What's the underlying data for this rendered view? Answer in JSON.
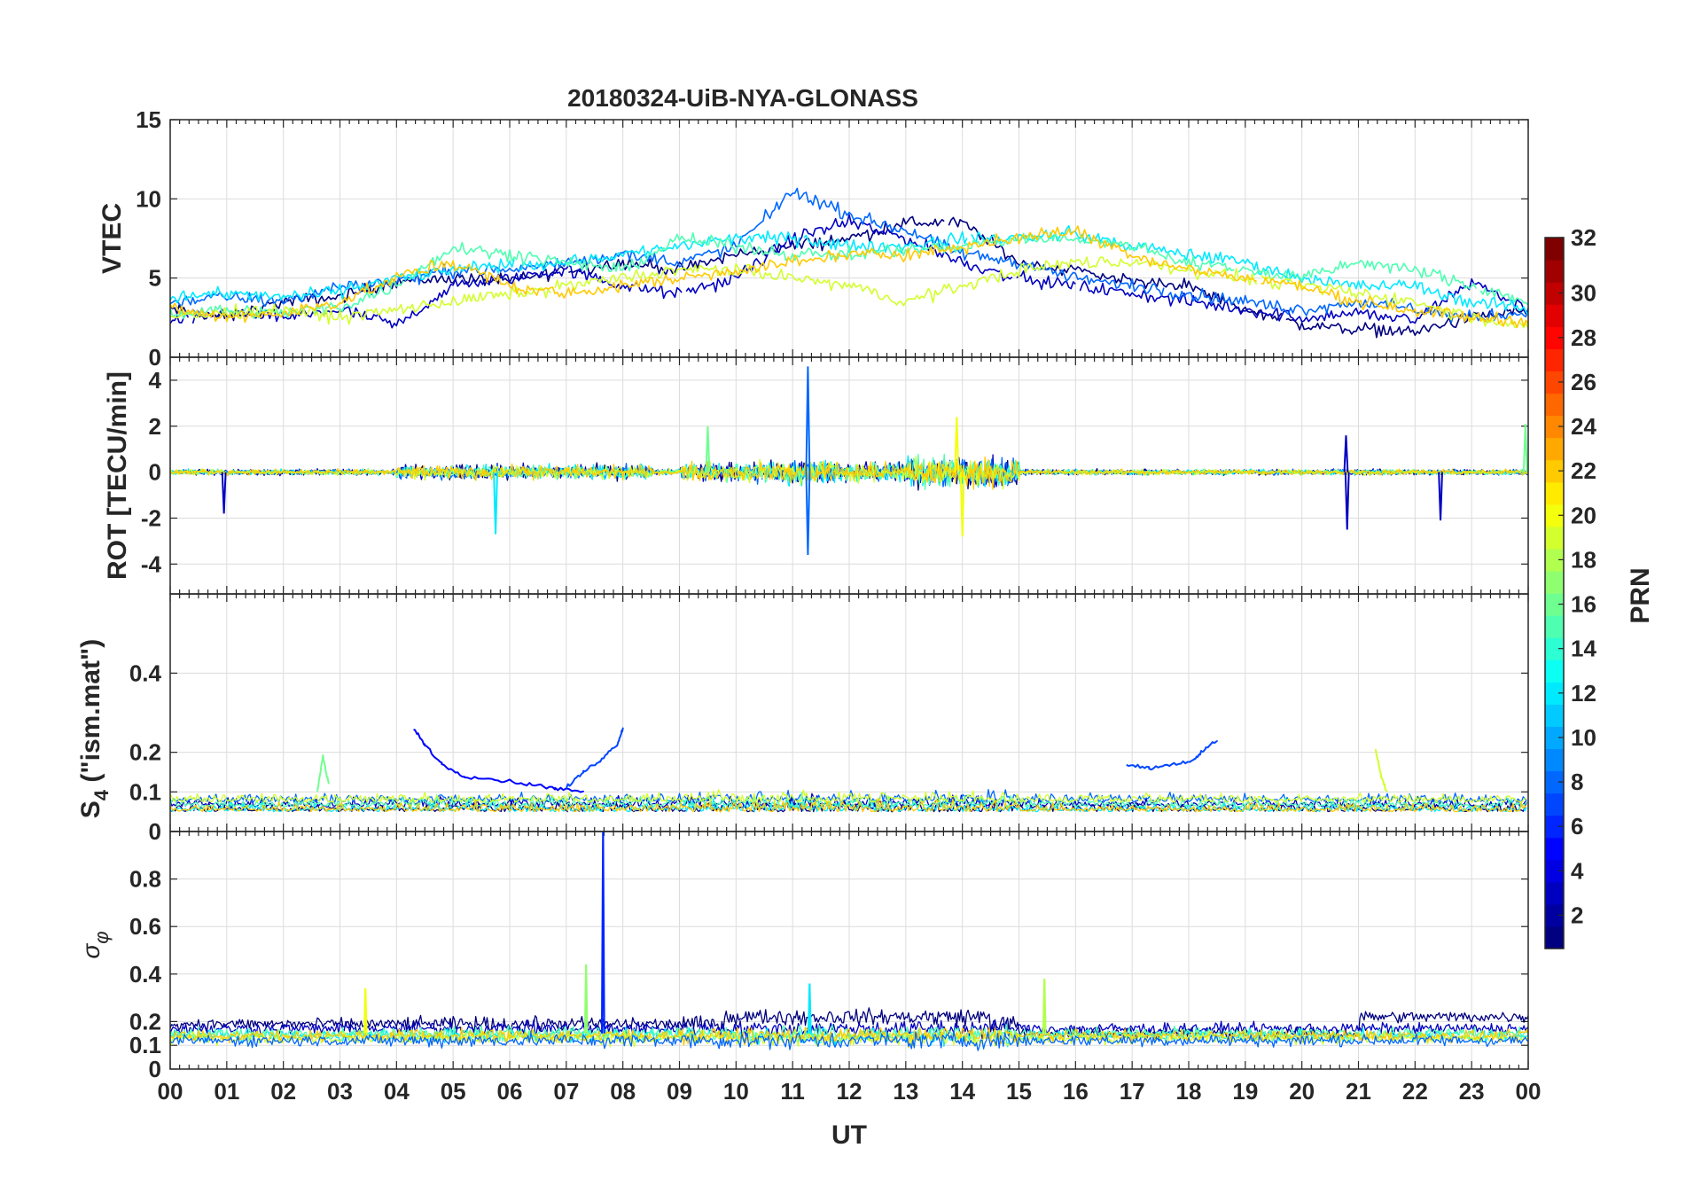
{
  "chart_data": {
    "type": "line",
    "title": "20180324-UiB-NYA-GLONASS",
    "xlabel": "UT",
    "x_tick_labels": [
      "00",
      "01",
      "02",
      "03",
      "04",
      "05",
      "06",
      "07",
      "08",
      "09",
      "10",
      "11",
      "12",
      "13",
      "14",
      "15",
      "16",
      "17",
      "18",
      "19",
      "20",
      "21",
      "22",
      "23",
      "00"
    ],
    "xlim": [
      0,
      24
    ],
    "grid": true,
    "panels": [
      {
        "id": "vtec",
        "ylabel": "VTEC",
        "ylim": [
          0,
          15
        ],
        "yticks": [
          0,
          5,
          10,
          15
        ],
        "ytick_labels": [
          "0",
          "5",
          "10",
          "15"
        ],
        "series": [
          {
            "prn": 1,
            "x": [
              0,
              1,
              2,
              3,
              4,
              5,
              6,
              7,
              8,
              9,
              10,
              11,
              12,
              13,
              14,
              15,
              16,
              17,
              18,
              19,
              20,
              21,
              22,
              23,
              24
            ],
            "y": [
              3.0,
              2.5,
              3.5,
              3.8,
              4.8,
              5.0,
              4.8,
              5.5,
              6.0,
              5.5,
              6.5,
              7.0,
              7.5,
              8.5,
              8.5,
              6.0,
              5.5,
              4.8,
              4.5,
              3.0,
              2.0,
              1.8,
              1.6,
              2.5,
              3.0
            ]
          },
          {
            "prn": 3,
            "x": [
              0,
              1,
              2,
              3,
              4,
              5,
              6,
              7,
              8,
              9,
              10,
              11,
              12,
              13,
              14,
              15,
              16,
              17,
              18,
              19,
              20,
              21,
              22,
              23,
              24
            ],
            "y": [
              2.2,
              2.8,
              2.5,
              3.0,
              2.0,
              4.5,
              5.0,
              5.5,
              4.5,
              4.0,
              5.0,
              7.5,
              8.5,
              7.5,
              6.0,
              5.0,
              4.5,
              4.0,
              3.5,
              3.0,
              2.5,
              2.8,
              2.3,
              4.8,
              3.0
            ]
          },
          {
            "prn": 8,
            "x": [
              0,
              1,
              2,
              3,
              4,
              5,
              6,
              7,
              8,
              9,
              10,
              11,
              12,
              13,
              14,
              15,
              16,
              17,
              18,
              19,
              20,
              21,
              22,
              23,
              24
            ],
            "y": [
              3.5,
              3.8,
              3.5,
              4.5,
              4.8,
              5.5,
              5.5,
              6.0,
              6.5,
              6.0,
              7.0,
              10.5,
              9.0,
              8.0,
              6.5,
              6.0,
              5.0,
              4.5,
              4.0,
              3.5,
              3.0,
              3.5,
              3.0,
              2.5,
              2.8
            ]
          },
          {
            "prn": 12,
            "x": [
              0,
              1,
              2,
              3,
              4,
              5,
              6,
              7,
              8,
              9,
              10,
              11,
              12,
              13,
              14,
              15,
              16,
              17,
              18,
              19,
              20,
              21,
              22,
              23,
              24
            ],
            "y": [
              3.8,
              4.0,
              3.8,
              4.2,
              5.0,
              5.5,
              5.8,
              6.0,
              6.5,
              7.0,
              7.5,
              7.5,
              7.0,
              7.0,
              7.5,
              7.5,
              7.8,
              7.0,
              6.5,
              6.0,
              5.0,
              4.5,
              4.5,
              3.5,
              3.0
            ]
          },
          {
            "prn": 15,
            "x": [
              0,
              1,
              2,
              3,
              4,
              5,
              6,
              7,
              8,
              9,
              10,
              11,
              12,
              13,
              14,
              15,
              16,
              17,
              18,
              19,
              20,
              21,
              22,
              23,
              24
            ],
            "y": [
              2.8,
              3.0,
              2.8,
              3.2,
              4.5,
              7.0,
              6.5,
              6.0,
              5.5,
              7.5,
              7.0,
              6.5,
              6.5,
              6.8,
              7.0,
              7.5,
              7.5,
              7.0,
              6.0,
              5.5,
              5.0,
              6.0,
              5.5,
              4.5,
              3.5
            ]
          },
          {
            "prn": 19,
            "x": [
              0,
              1,
              2,
              3,
              4,
              5,
              6,
              7,
              8,
              9,
              10,
              11,
              12,
              13,
              14,
              15,
              16,
              17,
              18,
              19,
              20,
              21,
              22,
              23,
              24
            ],
            "y": [
              2.5,
              2.8,
              3.0,
              2.5,
              3.0,
              3.5,
              4.0,
              4.5,
              5.0,
              5.5,
              5.5,
              5.0,
              4.5,
              3.5,
              4.5,
              5.5,
              6.0,
              6.0,
              5.5,
              5.0,
              4.5,
              4.0,
              3.5,
              2.5,
              2.0
            ]
          },
          {
            "prn": 22,
            "x": [
              0,
              1,
              2,
              3,
              4,
              5,
              6,
              7,
              8,
              9,
              10,
              11,
              12,
              13,
              14,
              15,
              16,
              17,
              18,
              19,
              20,
              21,
              22,
              23,
              24
            ],
            "y": [
              3.0,
              2.5,
              2.8,
              3.5,
              5.0,
              6.0,
              4.5,
              4.0,
              4.5,
              5.0,
              5.5,
              6.0,
              6.5,
              6.5,
              7.0,
              7.5,
              8.0,
              6.5,
              5.5,
              5.0,
              4.5,
              3.5,
              3.0,
              2.5,
              2.3
            ]
          }
        ]
      },
      {
        "id": "rot",
        "ylabel": "ROT [TECU/min]",
        "ylim": [
          -5.3,
          5
        ],
        "yticks": [
          -4,
          -2,
          0,
          2,
          4
        ],
        "ytick_labels": [
          "-4",
          "-2",
          "0",
          "2",
          "4"
        ],
        "spikes": [
          {
            "x": 11.27,
            "y": 4.6
          },
          {
            "x": 11.27,
            "y": -3.6
          },
          {
            "x": 13.9,
            "y": 2.4
          },
          {
            "x": 14.0,
            "y": -2.8
          },
          {
            "x": 5.75,
            "y": -2.7
          },
          {
            "x": 20.8,
            "y": -2.5
          },
          {
            "x": 20.78,
            "y": 1.6
          },
          {
            "x": 22.45,
            "y": -2.1
          },
          {
            "x": 23.95,
            "y": 2.1
          },
          {
            "x": 0.95,
            "y": -1.8
          },
          {
            "x": 9.5,
            "y": 2.0
          }
        ]
      },
      {
        "id": "s4",
        "ylabel": "S4 (\"ism.mat\")",
        "ylabel_main": "S",
        "ylabel_sub": "4",
        "ylabel_rest": " (\"ism.mat\")",
        "ylim": [
          0,
          0.6
        ],
        "yticks": [
          0,
          0.1,
          0.2,
          0.4
        ],
        "ytick_labels": [
          "0",
          "0.1",
          "0.2",
          "0.4"
        ],
        "segments": [
          {
            "prn": 5,
            "x": [
              4.3,
              4.5,
              4.8,
              5.2,
              5.8,
              6.3,
              6.8,
              7.3
            ],
            "y": [
              0.26,
              0.22,
              0.17,
              0.14,
              0.13,
              0.12,
              0.11,
              0.1
            ]
          },
          {
            "prn": 7,
            "x": [
              7.0,
              7.3,
              7.6,
              7.9,
              8.0
            ],
            "y": [
              0.11,
              0.15,
              0.18,
              0.22,
              0.26
            ]
          },
          {
            "prn": 7,
            "x": [
              16.9,
              17.3,
              17.7,
              18.1,
              18.3,
              18.5
            ],
            "y": [
              0.17,
              0.16,
              0.17,
              0.18,
              0.21,
              0.23
            ]
          },
          {
            "prn": 19,
            "x": [
              21.3,
              21.4,
              21.5
            ],
            "y": [
              0.21,
              0.14,
              0.1
            ]
          },
          {
            "prn": 16,
            "x": [
              2.6,
              2.7,
              2.8
            ],
            "y": [
              0.1,
              0.19,
              0.12
            ]
          }
        ]
      },
      {
        "id": "sigma_phi",
        "ylabel": "σφ",
        "ylabel_main": "σ",
        "ylabel_sub": "φ",
        "ylim": [
          0,
          1
        ],
        "yticks": [
          0,
          0.1,
          0.2,
          0.4,
          0.6,
          0.8
        ],
        "ytick_labels": [
          "0",
          "0.1",
          "0.2",
          "0.4",
          "0.6",
          "0.8"
        ],
        "spikes": [
          {
            "x": 7.65,
            "y": 1.0
          },
          {
            "x": 7.35,
            "y": 0.44
          },
          {
            "x": 15.45,
            "y": 0.38
          },
          {
            "x": 3.45,
            "y": 0.34
          },
          {
            "x": 11.3,
            "y": 0.36
          }
        ]
      }
    ],
    "colorbar": {
      "label": "PRN",
      "colormap": "jet",
      "range": [
        1,
        32
      ],
      "ticks": [
        2,
        4,
        6,
        8,
        10,
        12,
        14,
        16,
        18,
        20,
        22,
        24,
        26,
        28,
        30,
        32
      ],
      "tick_labels": [
        "2",
        "4",
        "6",
        "8",
        "10",
        "12",
        "14",
        "16",
        "18",
        "20",
        "22",
        "24",
        "26",
        "28",
        "30",
        "32"
      ]
    }
  }
}
